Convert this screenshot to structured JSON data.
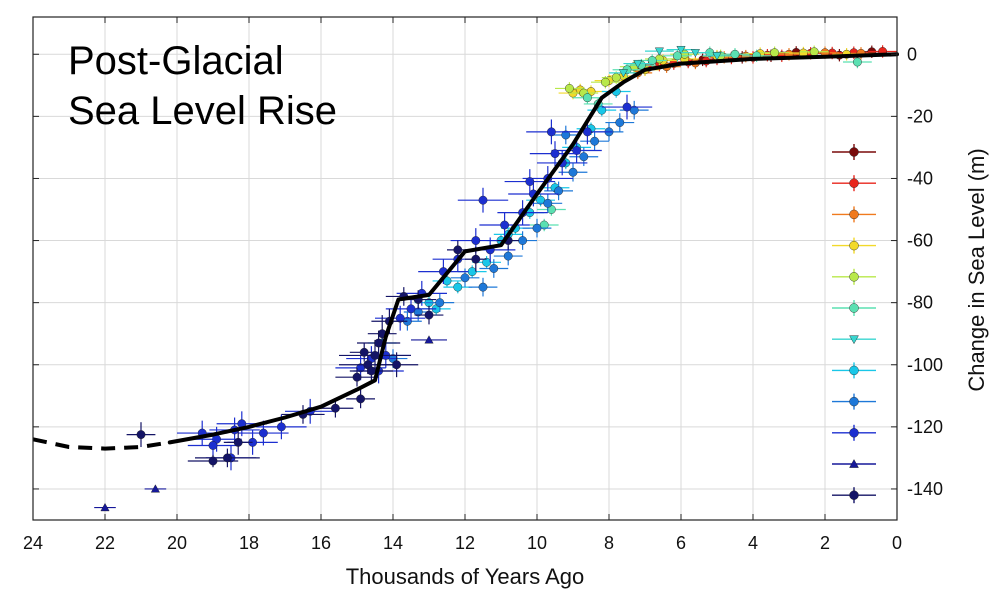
{
  "chart_data": {
    "type": "scatter",
    "title_lines": [
      "Post-Glacial",
      "Sea Level Rise"
    ],
    "xlabel": "Thousands of Years Ago",
    "ylabel": "Change in Sea Level (m)",
    "xlim": [
      24,
      0
    ],
    "ylim": [
      -150,
      12
    ],
    "x_ticks": [
      24,
      22,
      20,
      18,
      16,
      14,
      12,
      10,
      8,
      6,
      4,
      2,
      0
    ],
    "y_ticks": [
      0,
      -20,
      -40,
      -60,
      -80,
      -100,
      -120,
      -140
    ],
    "grid": true,
    "legend_location": "right",
    "colors": {
      "axis": "#222222",
      "grid": "#d9d9d9",
      "curve": "#000000"
    },
    "legend": [
      {
        "marker": "circle",
        "color": "#7a0a0a"
      },
      {
        "marker": "circle",
        "color": "#e8261c"
      },
      {
        "marker": "circle",
        "color": "#f07a1e"
      },
      {
        "marker": "circle",
        "color": "#f2d92a"
      },
      {
        "marker": "circle",
        "color": "#b8e84a"
      },
      {
        "marker": "circle",
        "color": "#5be0b2"
      },
      {
        "marker": "triangle-down",
        "color": "#38d6d0"
      },
      {
        "marker": "circle",
        "color": "#19c7e8"
      },
      {
        "marker": "circle",
        "color": "#1e78d8"
      },
      {
        "marker": "circle",
        "color": "#1c2fd0"
      },
      {
        "marker": "triangle-up",
        "color": "#16189a"
      },
      {
        "marker": "circle",
        "color": "#141466"
      }
    ],
    "trend_dashed": [
      [
        24,
        -124
      ],
      [
        23,
        -126.5
      ],
      [
        22,
        -127
      ],
      [
        21,
        -126.5
      ],
      [
        20.2,
        -125
      ]
    ],
    "trend_solid": [
      [
        20.2,
        -125
      ],
      [
        19,
        -122.5
      ],
      [
        18,
        -120
      ],
      [
        17,
        -117
      ],
      [
        16,
        -113.5
      ],
      [
        15,
        -108
      ],
      [
        14.5,
        -105
      ],
      [
        14.2,
        -91
      ],
      [
        13.85,
        -79
      ],
      [
        13.0,
        -77.5
      ],
      [
        12.0,
        -63.5
      ],
      [
        11.0,
        -61.5
      ],
      [
        10.0,
        -45
      ],
      [
        9.0,
        -29
      ],
      [
        8.2,
        -14
      ],
      [
        7.6,
        -9
      ],
      [
        7.0,
        -5
      ],
      [
        6.0,
        -3
      ],
      [
        4.0,
        -1.5
      ],
      [
        2.0,
        -0.8
      ],
      [
        0,
        0
      ]
    ],
    "series": [
      {
        "name": "s1",
        "marker": "circle",
        "color": "#7a0a0a",
        "points": [
          [
            3.5,
            -0.5,
            0.4,
            2
          ],
          [
            2.8,
            0.6,
            0.4,
            2
          ],
          [
            1.6,
            -0.3,
            0.4,
            2
          ],
          [
            0.7,
            0.8,
            0.4,
            2
          ],
          [
            4.3,
            -1.0,
            0.4,
            2
          ],
          [
            5.4,
            -1.8,
            0.4,
            2
          ]
        ]
      },
      {
        "name": "s2",
        "marker": "circle",
        "color": "#e8261c",
        "points": [
          [
            6.6,
            -3.5,
            0.4,
            2
          ],
          [
            6.2,
            -3.0,
            0.4,
            2
          ],
          [
            5.8,
            -2.5,
            0.4,
            2
          ],
          [
            5.0,
            -1.5,
            0.4,
            2
          ],
          [
            4.6,
            -1.2,
            0.4,
            2
          ],
          [
            4.0,
            -1.0,
            0.4,
            2
          ],
          [
            3.2,
            -0.5,
            0.4,
            2
          ],
          [
            2.4,
            0.3,
            0.4,
            2
          ],
          [
            1.8,
            0.4,
            0.4,
            2
          ],
          [
            1.2,
            0.5,
            0.4,
            2
          ],
          [
            0.4,
            0.9,
            0.4,
            2
          ],
          [
            3.6,
            -0.3,
            0.4,
            2
          ],
          [
            5.3,
            -2.2,
            0.4,
            2
          ],
          [
            6.9,
            -4.2,
            0.4,
            2
          ]
        ]
      },
      {
        "name": "s3",
        "marker": "circle",
        "color": "#f07a1e",
        "points": [
          [
            6.4,
            -4.0,
            0.4,
            2
          ],
          [
            5.6,
            -2.8,
            0.4,
            2
          ],
          [
            4.8,
            -1.0,
            0.4,
            2
          ],
          [
            4.2,
            -0.6,
            0.4,
            2
          ],
          [
            3.0,
            0.0,
            0.4,
            2
          ],
          [
            2.0,
            0.5,
            0.4,
            2
          ],
          [
            1.0,
            0.3,
            0.4,
            2
          ],
          [
            7.2,
            -6.0,
            0.4,
            2
          ]
        ]
      },
      {
        "name": "s4",
        "marker": "circle",
        "color": "#f2d92a",
        "points": [
          [
            8.8,
            -11.5,
            0.4,
            2
          ],
          [
            8.5,
            -12.0,
            0.4,
            2
          ],
          [
            7.6,
            -7.0,
            0.4,
            2
          ],
          [
            7.0,
            -5.0,
            0.4,
            2
          ],
          [
            6.5,
            -2.0,
            0.4,
            2
          ],
          [
            5.9,
            -1.5,
            0.4,
            2
          ],
          [
            5.0,
            -0.6,
            0.4,
            2
          ],
          [
            3.8,
            0.2,
            0.4,
            2
          ],
          [
            2.6,
            0.4,
            0.4,
            2
          ],
          [
            1.4,
            0.0,
            0.4,
            2
          ],
          [
            8.0,
            -8.5,
            0.4,
            2
          ],
          [
            9.0,
            -12.5,
            0.4,
            2
          ]
        ]
      },
      {
        "name": "s5",
        "marker": "circle",
        "color": "#b8e84a",
        "points": [
          [
            9.1,
            -11.0,
            0.4,
            2
          ],
          [
            8.7,
            -12.5,
            0.4,
            2
          ],
          [
            7.8,
            -7.5,
            0.4,
            2
          ],
          [
            7.3,
            -4.0,
            0.4,
            2
          ],
          [
            6.6,
            -1.5,
            0.4,
            2
          ],
          [
            5.9,
            0.0,
            0.4,
            2
          ],
          [
            4.9,
            -0.5,
            0.4,
            2
          ],
          [
            3.4,
            0.5,
            0.4,
            2
          ],
          [
            2.3,
            0.8,
            0.4,
            2
          ],
          [
            8.1,
            -9.0,
            0.4,
            2
          ]
        ]
      },
      {
        "name": "s6",
        "marker": "circle",
        "color": "#5be0b2",
        "points": [
          [
            7.5,
            -5.0,
            0.4,
            2
          ],
          [
            7.1,
            -3.5,
            0.4,
            2
          ],
          [
            6.8,
            -2.0,
            0.4,
            2
          ],
          [
            6.1,
            -0.5,
            0.4,
            2
          ],
          [
            5.2,
            0.5,
            0.4,
            2
          ],
          [
            4.5,
            0.0,
            0.4,
            2
          ],
          [
            3.9,
            -0.5,
            0.4,
            2
          ],
          [
            1.1,
            -2.5,
            0.4,
            2
          ],
          [
            9.8,
            -55.0,
            0.4,
            2
          ],
          [
            9.6,
            -50.0,
            0.4,
            2
          ],
          [
            8.6,
            -14.0,
            0.4,
            2
          ],
          [
            8.3,
            -16.0,
            0.4,
            2
          ]
        ]
      },
      {
        "name": "s7",
        "marker": "triangle-down",
        "color": "#38d6d0",
        "points": [
          [
            7.6,
            -6.0,
            0.4,
            0
          ],
          [
            7.2,
            -3.0,
            0.4,
            0
          ],
          [
            6.6,
            1.0,
            0.4,
            0
          ],
          [
            6.0,
            1.5,
            0.4,
            0
          ],
          [
            5.6,
            0.5,
            0.4,
            0
          ],
          [
            5.0,
            -0.5,
            0.4,
            0
          ]
        ]
      },
      {
        "name": "s8",
        "marker": "circle",
        "color": "#19c7e8",
        "points": [
          [
            13.0,
            -80.0,
            0.4,
            2
          ],
          [
            12.8,
            -82.0,
            0.4,
            2
          ],
          [
            12.2,
            -75.0,
            0.4,
            2
          ],
          [
            11.8,
            -70.0,
            0.4,
            2
          ],
          [
            11.4,
            -67.0,
            0.4,
            2
          ],
          [
            11.0,
            -60.0,
            0.4,
            2
          ],
          [
            10.6,
            -56.0,
            0.4,
            2
          ],
          [
            10.2,
            -51.0,
            0.4,
            2
          ],
          [
            9.9,
            -47.0,
            0.4,
            2
          ],
          [
            9.5,
            -43.0,
            0.4,
            2
          ],
          [
            9.2,
            -35.0,
            0.4,
            2
          ],
          [
            8.9,
            -30.0,
            0.4,
            2
          ],
          [
            8.5,
            -24.0,
            0.4,
            2
          ],
          [
            8.2,
            -18.0,
            0.4,
            2
          ],
          [
            7.8,
            -12.0,
            0.4,
            2
          ],
          [
            14.3,
            -93.0,
            0.4,
            2
          ],
          [
            12.5,
            -73.0,
            0.4,
            2
          ],
          [
            10.8,
            -58.0,
            0.4,
            2
          ]
        ]
      },
      {
        "name": "s9",
        "marker": "circle",
        "color": "#1e78d8",
        "points": [
          [
            14.0,
            -98.0,
            0.4,
            3
          ],
          [
            13.6,
            -86.0,
            0.4,
            3
          ],
          [
            13.3,
            -83.0,
            0.4,
            3
          ],
          [
            12.7,
            -80.0,
            0.4,
            3
          ],
          [
            12.0,
            -72.0,
            0.4,
            3
          ],
          [
            11.5,
            -75.0,
            0.4,
            3
          ],
          [
            11.2,
            -69.0,
            0.4,
            3
          ],
          [
            10.8,
            -65.0,
            0.4,
            3
          ],
          [
            10.4,
            -60.0,
            0.4,
            3
          ],
          [
            10.0,
            -56.0,
            0.4,
            3
          ],
          [
            9.7,
            -48.0,
            0.4,
            3
          ],
          [
            9.4,
            -44.0,
            0.4,
            3
          ],
          [
            9.0,
            -38.0,
            0.4,
            3
          ],
          [
            8.7,
            -33.0,
            0.4,
            3
          ],
          [
            8.4,
            -28.0,
            0.4,
            3
          ],
          [
            8.0,
            -25.0,
            0.4,
            3
          ],
          [
            7.7,
            -22.0,
            0.4,
            3
          ],
          [
            7.3,
            -18.0,
            0.4,
            3
          ],
          [
            9.2,
            -26.0,
            0.4,
            3
          ]
        ]
      },
      {
        "name": "s10",
        "marker": "circle",
        "color": "#1c2fd0",
        "points": [
          [
            19.3,
            -122.0,
            0.7,
            4
          ],
          [
            18.9,
            -124.0,
            0.7,
            4
          ],
          [
            18.4,
            -121.0,
            0.7,
            4
          ],
          [
            17.9,
            -125.0,
            0.7,
            4
          ],
          [
            17.6,
            -122.0,
            0.7,
            4
          ],
          [
            17.1,
            -120.0,
            0.7,
            4
          ],
          [
            16.3,
            -115.0,
            0.7,
            4
          ],
          [
            14.9,
            -101.0,
            0.7,
            4
          ],
          [
            14.6,
            -98.0,
            0.7,
            4
          ],
          [
            14.4,
            -102.0,
            0.7,
            4
          ],
          [
            14.2,
            -97.0,
            0.7,
            4
          ],
          [
            13.8,
            -85.0,
            0.7,
            4
          ],
          [
            13.5,
            -82.0,
            0.7,
            4
          ],
          [
            13.2,
            -77.0,
            0.7,
            4
          ],
          [
            12.6,
            -70.0,
            0.7,
            4
          ],
          [
            12.2,
            -66.0,
            0.7,
            4
          ],
          [
            11.7,
            -60.0,
            0.7,
            4
          ],
          [
            11.3,
            -63.0,
            0.7,
            4
          ],
          [
            10.9,
            -55.0,
            0.7,
            4
          ],
          [
            10.4,
            -51.0,
            0.7,
            4
          ],
          [
            10.1,
            -45.0,
            0.7,
            4
          ],
          [
            9.7,
            -40.0,
            0.7,
            4
          ],
          [
            9.3,
            -35.0,
            0.7,
            4
          ],
          [
            8.9,
            -31.0,
            0.7,
            4
          ],
          [
            8.6,
            -25.0,
            0.7,
            4
          ],
          [
            11.5,
            -47.0,
            0.7,
            4
          ],
          [
            10.2,
            -41.0,
            0.7,
            4
          ],
          [
            9.5,
            -32.0,
            0.7,
            4
          ],
          [
            9.6,
            -25.0,
            0.7,
            4
          ],
          [
            7.5,
            -17.0,
            0.7,
            4
          ],
          [
            19.0,
            -126.0,
            0.7,
            4
          ],
          [
            18.5,
            -130.0,
            0.7,
            4
          ],
          [
            18.2,
            -119.0,
            0.7,
            4
          ]
        ]
      },
      {
        "name": "s11",
        "marker": "triangle-up",
        "color": "#16189a",
        "points": [
          [
            22.0,
            -146.0,
            0.3,
            0
          ],
          [
            20.6,
            -140.0,
            0.3,
            0
          ],
          [
            13.0,
            -92.0,
            0.5,
            0
          ]
        ]
      },
      {
        "name": "s12",
        "marker": "circle",
        "color": "#141466",
        "points": [
          [
            21.0,
            -122.5,
            0.4,
            4
          ],
          [
            19.0,
            -131.0,
            0.7,
            2
          ],
          [
            18.6,
            -130.0,
            0.9,
            3
          ],
          [
            18.3,
            -125.0,
            0.4,
            4
          ],
          [
            16.5,
            -116.0,
            0.6,
            3
          ],
          [
            15.6,
            -114.0,
            0.5,
            3
          ],
          [
            15.0,
            -104.0,
            0.6,
            3
          ],
          [
            14.7,
            -100.0,
            0.8,
            3
          ],
          [
            14.5,
            -97.0,
            1.0,
            5
          ],
          [
            14.4,
            -93.0,
            0.6,
            4
          ],
          [
            14.3,
            -90.0,
            0.4,
            6
          ],
          [
            14.1,
            -86.0,
            0.5,
            4
          ],
          [
            14.6,
            -102.0,
            0.6,
            3
          ],
          [
            14.8,
            -96.0,
            0.4,
            3
          ],
          [
            14.9,
            -111.0,
            0.4,
            3
          ],
          [
            13.9,
            -100.0,
            0.6,
            4
          ],
          [
            13.7,
            -78.0,
            0.5,
            3
          ],
          [
            13.3,
            -79.0,
            0.5,
            3
          ],
          [
            13.0,
            -84.0,
            0.4,
            3
          ],
          [
            12.2,
            -63.0,
            0.3,
            3
          ],
          [
            11.7,
            -66.0,
            0.3,
            4
          ],
          [
            10.8,
            -60.0,
            0.3,
            3
          ]
        ]
      }
    ]
  }
}
